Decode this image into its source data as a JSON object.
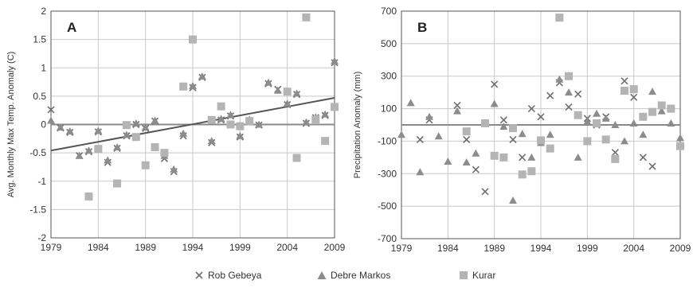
{
  "colors": {
    "rob": "#6e6e6e",
    "debre": "#8c8c8c",
    "kurar": "#b4b4b4",
    "grid": "#c8c8c8",
    "zero": "#8a8a8a",
    "axis": "#555555"
  },
  "legend": [
    {
      "name": "Rob Gebeya",
      "marker": "x-icon"
    },
    {
      "name": "Debre Markos",
      "marker": "triangle-icon"
    },
    {
      "name": "Kurar",
      "marker": "square-icon"
    }
  ],
  "chart_data": [
    {
      "panel": "A",
      "type": "scatter",
      "ylabel": "Avg. Monthly Max Temp. Anomaly (C)",
      "xlabel": "",
      "xlim": [
        1979,
        2009
      ],
      "ylim": [
        -2,
        2
      ],
      "xticks": [
        "1979",
        "1984",
        "1989",
        "1994",
        "1999",
        "2004",
        "2009"
      ],
      "yticks": [
        "2",
        "1.5",
        "1",
        "0.5",
        "0",
        "-0.5",
        "-1",
        "-1.5",
        "-2"
      ],
      "grid": true,
      "series": [
        {
          "name": "Rob Gebeya",
          "marker": "x",
          "x": [
            1979,
            1980,
            1981,
            1982,
            1983,
            1984,
            1985,
            1986,
            1987,
            1988,
            1989,
            1990,
            1991,
            1992,
            1993,
            1994,
            1995,
            1996,
            1997,
            1998,
            1999,
            2000,
            2001,
            2002,
            2003,
            2004,
            2005,
            2006,
            2007,
            2008,
            2009
          ],
          "y": [
            0.26,
            -0.06,
            -0.14,
            -0.55,
            -0.48,
            -0.13,
            -0.67,
            -0.42,
            -0.2,
            0.0,
            -0.07,
            0.06,
            -0.6,
            -0.83,
            -0.2,
            0.65,
            0.83,
            -0.32,
            0.08,
            0.15,
            -0.22,
            0.07,
            -0.01,
            0.72,
            0.62,
            0.35,
            0.53,
            0.02,
            0.12,
            0.16,
            1.09
          ]
        },
        {
          "name": "Debre Markos",
          "marker": "triangle",
          "x": [
            1979,
            1980,
            1981,
            1982,
            1983,
            1984,
            1985,
            1986,
            1987,
            1988,
            1989,
            1990,
            1991,
            1992,
            1993,
            1994,
            1995,
            1996,
            1997,
            1998,
            1999,
            2000,
            2001,
            2002,
            2003,
            2004,
            2005,
            2006,
            2007,
            2008,
            2009
          ],
          "y": [
            0.07,
            -0.05,
            -0.12,
            -0.55,
            -0.46,
            -0.11,
            -0.63,
            -0.4,
            -0.18,
            0.02,
            -0.05,
            0.07,
            -0.55,
            -0.79,
            -0.16,
            0.68,
            0.85,
            -0.29,
            0.1,
            0.17,
            -0.2,
            0.09,
            0.0,
            0.74,
            0.6,
            0.37,
            0.55,
            0.04,
            0.13,
            0.18,
            1.12
          ]
        },
        {
          "name": "Kurar",
          "marker": "square",
          "x": [
            1983,
            1984,
            1986,
            1987,
            1988,
            1989,
            1990,
            1991,
            1993,
            1994,
            1996,
            1997,
            1998,
            1999,
            2000,
            2004,
            2005,
            2006,
            2007,
            2008,
            2009
          ],
          "y": [
            -1.27,
            -0.43,
            -1.04,
            -0.01,
            -0.22,
            -0.72,
            -0.4,
            -0.5,
            0.67,
            1.5,
            0.08,
            0.32,
            0.0,
            -0.03,
            0.06,
            0.58,
            -0.59,
            1.89,
            0.09,
            -0.29,
            0.31
          ]
        }
      ],
      "trendline": {
        "x": [
          1979,
          2009
        ],
        "y": [
          -0.46,
          0.47
        ]
      }
    },
    {
      "panel": "B",
      "type": "scatter",
      "ylabel": "Precipitation Anomaly (mm)",
      "xlabel": "",
      "xlim": [
        1979,
        2009
      ],
      "ylim": [
        -700,
        700
      ],
      "xticks": [
        "1979",
        "1984",
        "1989",
        "1994",
        "1999",
        "2004",
        "2009"
      ],
      "yticks": [
        "700",
        "500",
        "300",
        "100",
        "-100",
        "-300",
        "-500",
        "-700"
      ],
      "grid": true,
      "series": [
        {
          "name": "Rob Gebeya",
          "marker": "x",
          "x": [
            1981,
            1982,
            1985,
            1986,
            1987,
            1988,
            1989,
            1990,
            1991,
            1992,
            1993,
            1994,
            1995,
            1996,
            1997,
            1998,
            1999,
            2000,
            2001,
            2002,
            2003,
            2004,
            2005,
            2006
          ],
          "y": [
            -90,
            30,
            120,
            -90,
            -275,
            -410,
            250,
            30,
            -90,
            -200,
            100,
            50,
            180,
            260,
            110,
            190,
            40,
            0,
            50,
            -170,
            270,
            170,
            -200,
            -255
          ]
        },
        {
          "name": "Debre Markos",
          "marker": "triangle",
          "x": [
            1979,
            1980,
            1981,
            1982,
            1983,
            1984,
            1985,
            1986,
            1987,
            1989,
            1990,
            1991,
            1992,
            1993,
            1994,
            1995,
            1996,
            1997,
            1998,
            1999,
            2000,
            2001,
            2002,
            2003,
            2004,
            2005,
            2006,
            2007,
            2008,
            2009
          ],
          "y": [
            -60,
            135,
            -290,
            50,
            -70,
            -225,
            85,
            -230,
            -175,
            130,
            -10,
            -465,
            -55,
            -200,
            -110,
            -60,
            280,
            200,
            -200,
            20,
            70,
            40,
            0,
            -100,
            10,
            -60,
            205,
            85,
            10,
            -80
          ]
        },
        {
          "name": "Kurar",
          "marker": "square",
          "x": [
            1986,
            1988,
            1989,
            1990,
            1991,
            1992,
            1993,
            1994,
            1995,
            1996,
            1997,
            1998,
            1999,
            2000,
            2001,
            2002,
            2003,
            2004,
            2005,
            2006,
            2007,
            2008,
            2009
          ],
          "y": [
            -40,
            10,
            -190,
            -200,
            -20,
            -305,
            -285,
            -95,
            -145,
            660,
            300,
            60,
            -100,
            10,
            -90,
            -210,
            210,
            220,
            50,
            80,
            120,
            100,
            -130
          ]
        }
      ]
    }
  ]
}
